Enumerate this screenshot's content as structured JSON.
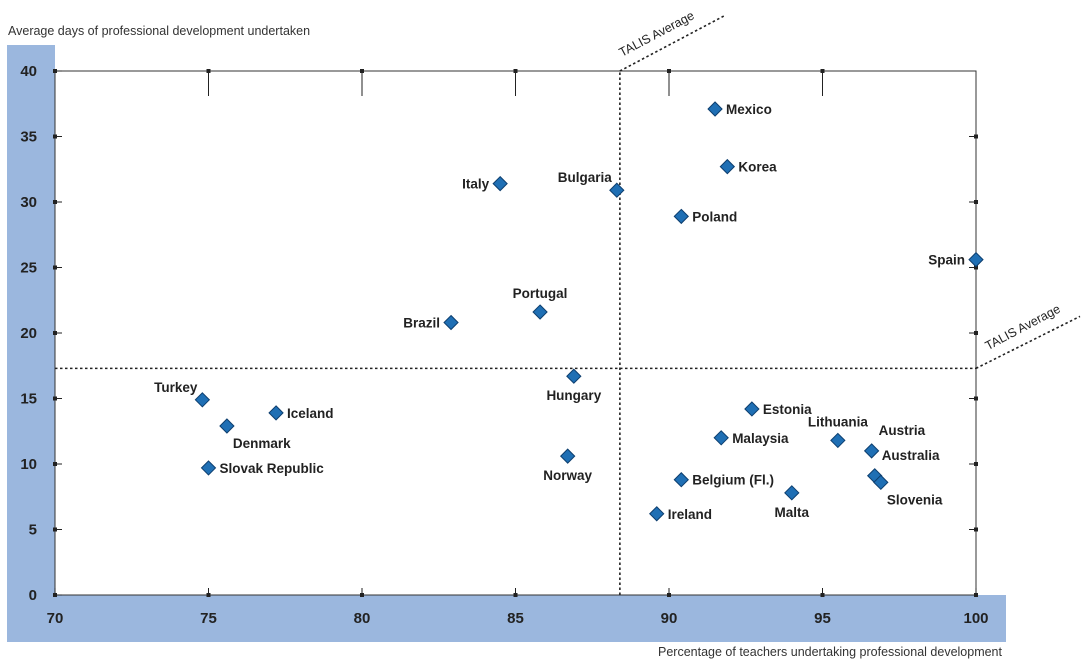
{
  "chart_data": {
    "type": "scatter",
    "title": "",
    "xlabel": "Percentage of teachers undertaking professional development",
    "ylabel": "Average days of professional development undertaken",
    "xlim": [
      70,
      100
    ],
    "ylim": [
      0,
      40
    ],
    "xticks": [
      "70",
      "75",
      "80",
      "85",
      "90",
      "95",
      "100"
    ],
    "yticks": [
      "0",
      "5",
      "10",
      "15",
      "20",
      "25",
      "30",
      "35",
      "40"
    ],
    "grid": false,
    "marker_color": "#1f6fb4",
    "axis_band_color": "#9bb7de",
    "reference_lines": [
      {
        "axis": "x",
        "value": 88.4,
        "label": "TALIS Average"
      },
      {
        "axis": "y",
        "value": 17.3,
        "label": "TALIS Average"
      }
    ],
    "points": [
      {
        "label": "Mexico",
        "x": 91.5,
        "y": 37.1,
        "label_side": "right"
      },
      {
        "label": "Korea",
        "x": 91.9,
        "y": 32.7,
        "label_side": "right"
      },
      {
        "label": "Italy",
        "x": 84.5,
        "y": 31.4,
        "label_side": "left"
      },
      {
        "label": "Bulgaria",
        "x": 88.3,
        "y": 30.9,
        "label_side": "left-up"
      },
      {
        "label": "Poland",
        "x": 90.4,
        "y": 28.9,
        "label_side": "right"
      },
      {
        "label": "Spain",
        "x": 100.0,
        "y": 25.6,
        "label_side": "left"
      },
      {
        "label": "Portugal",
        "x": 85.8,
        "y": 21.6,
        "label_side": "above"
      },
      {
        "label": "Brazil",
        "x": 82.9,
        "y": 20.8,
        "label_side": "left"
      },
      {
        "label": "Hungary",
        "x": 86.9,
        "y": 16.7,
        "label_side": "below"
      },
      {
        "label": "Turkey",
        "x": 74.8,
        "y": 14.9,
        "label_side": "left-up"
      },
      {
        "label": "Estonia",
        "x": 92.7,
        "y": 14.2,
        "label_side": "right"
      },
      {
        "label": "Iceland",
        "x": 77.2,
        "y": 13.9,
        "label_side": "right"
      },
      {
        "label": "Denmark",
        "x": 75.6,
        "y": 12.9,
        "label_side": "right-down"
      },
      {
        "label": "Malaysia",
        "x": 91.7,
        "y": 12.0,
        "label_side": "right"
      },
      {
        "label": "Lithuania",
        "x": 95.5,
        "y": 11.8,
        "label_side": "above"
      },
      {
        "label": "Austria",
        "x": 96.6,
        "y": 11.0,
        "label_side": "right-up"
      },
      {
        "label": "Norway",
        "x": 86.7,
        "y": 10.6,
        "label_side": "below"
      },
      {
        "label": "Slovak Republic",
        "x": 75.0,
        "y": 9.7,
        "label_side": "right"
      },
      {
        "label": "Australia",
        "x": 96.7,
        "y": 9.1,
        "label_side": "right-up"
      },
      {
        "label": "Belgium (Fl.)",
        "x": 90.4,
        "y": 8.8,
        "label_side": "right"
      },
      {
        "label": "Slovenia",
        "x": 96.9,
        "y": 8.6,
        "label_side": "right-down"
      },
      {
        "label": "Malta",
        "x": 94.0,
        "y": 7.8,
        "label_side": "below"
      },
      {
        "label": "Ireland",
        "x": 89.6,
        "y": 6.2,
        "label_side": "right"
      }
    ]
  }
}
